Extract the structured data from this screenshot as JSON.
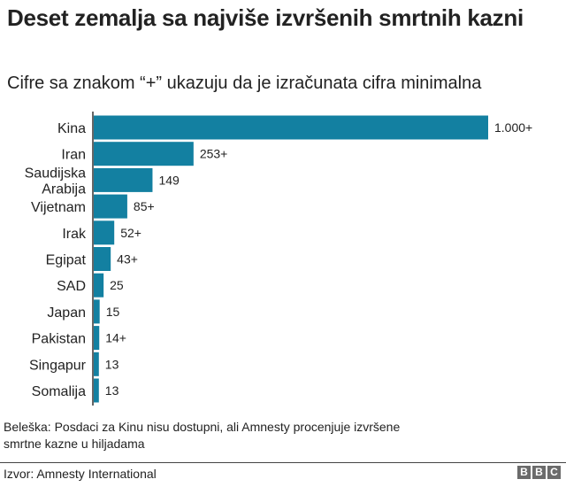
{
  "chart_data": {
    "type": "bar",
    "orientation": "horizontal",
    "title": "Deset zemalja sa najviše izvršenih smrtnih kazni",
    "subtitle": "Cifre sa znakom “+” ukazuju da je izračunata cifra minimalna",
    "categories": [
      "Kina",
      "Iran",
      "Saudijska Arabija",
      "Vijetnam",
      "Irak",
      "Egipat",
      "SAD",
      "Japan",
      "Pakistan",
      "Singapur",
      "Somalija"
    ],
    "values": [
      1000,
      253,
      149,
      85,
      52,
      43,
      25,
      15,
      14,
      13,
      13
    ],
    "data_labels": [
      "1.000+",
      "253+",
      "149",
      "85+",
      "52+",
      "43+",
      "25",
      "15",
      "14+",
      "13",
      "13"
    ],
    "xlim": [
      0,
      1000
    ],
    "grid": false,
    "bar_color": "#1380a1"
  },
  "footer": {
    "note": "Beleška: Posdaci za Kinu nisu dostupni, ali Amnesty procenjuje izvršene smrtne kazne u hiljadama",
    "source": "Izvor: Amnesty International",
    "logo": "BBC"
  }
}
